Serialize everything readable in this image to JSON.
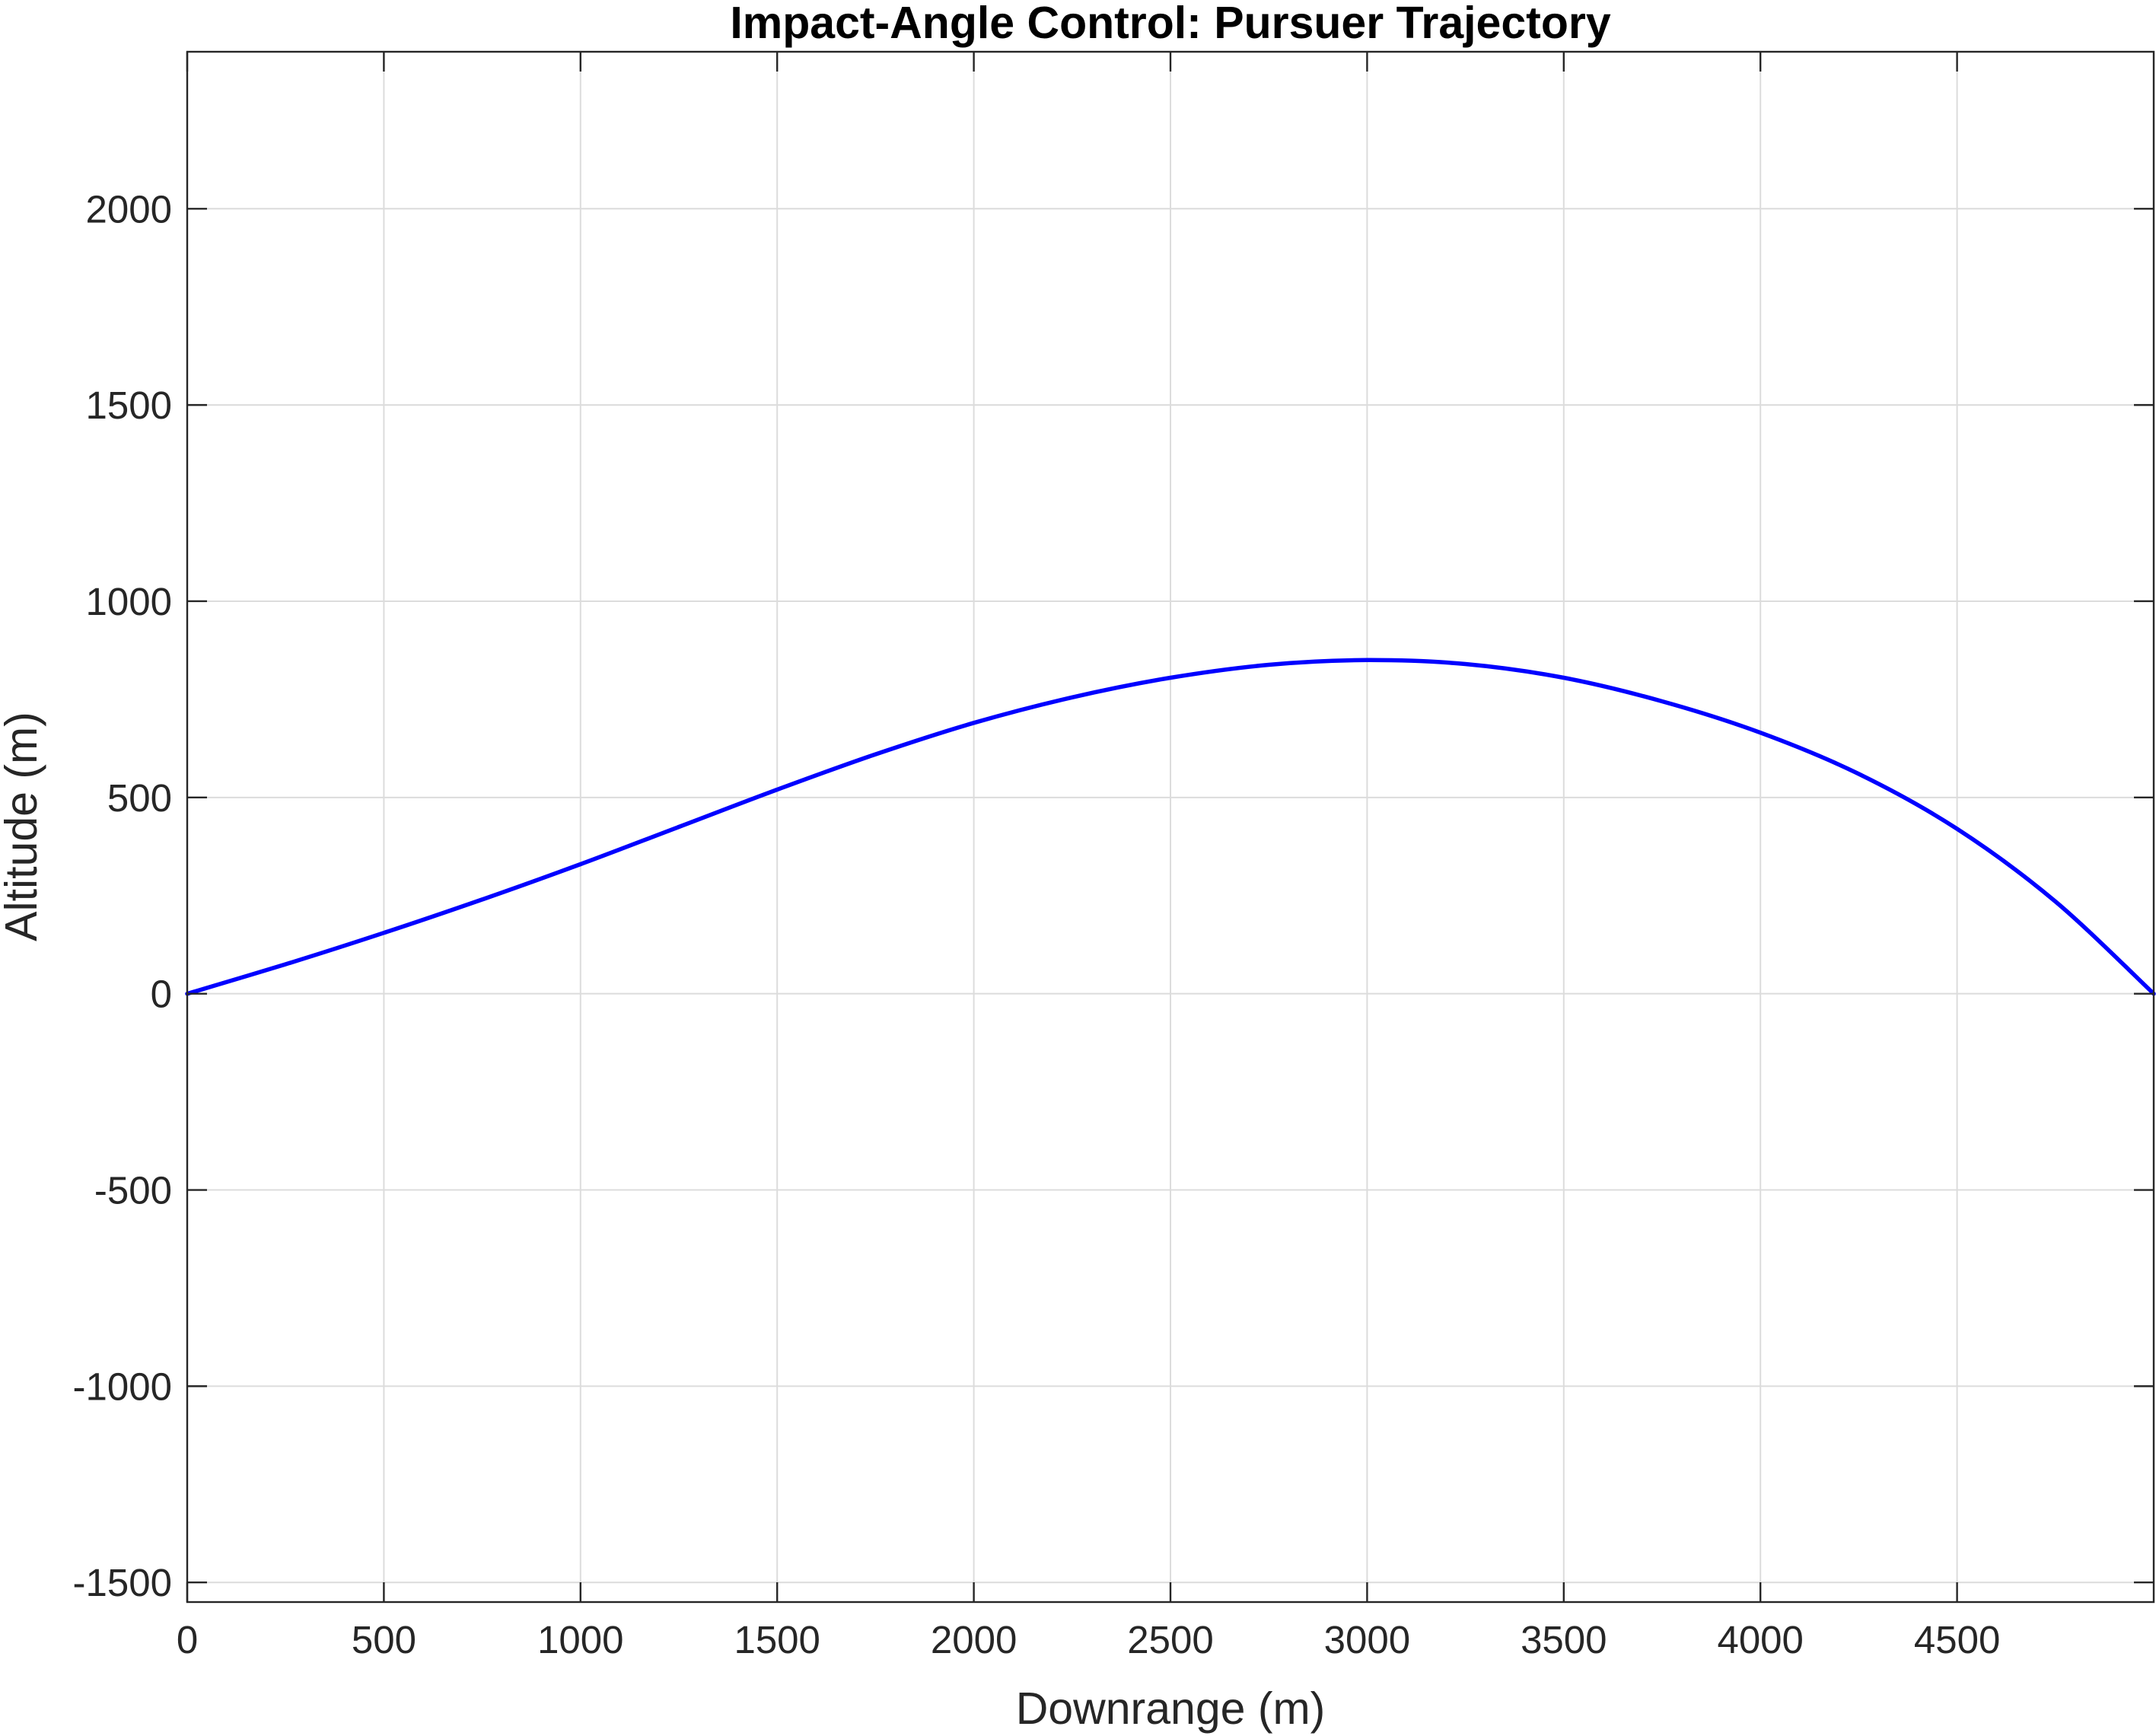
{
  "chart_data": {
    "type": "line",
    "title": "Impact-Angle Control: Pursuer Trajectory",
    "xlabel": "Downrange (m)",
    "ylabel": "Altitude (m)",
    "xlim": [
      0,
      5000
    ],
    "ylim": [
      -1550,
      2400
    ],
    "xticks": [
      0,
      500,
      1000,
      1500,
      2000,
      2500,
      3000,
      3500,
      4000,
      4500
    ],
    "yticks": [
      -1500,
      -1000,
      -500,
      0,
      500,
      1000,
      1500,
      2000
    ],
    "grid": true,
    "series": [
      {
        "color": "#0000ff",
        "x": [
          0,
          250,
          500,
          750,
          1000,
          1250,
          1500,
          1750,
          2000,
          2250,
          2500,
          2750,
          3000,
          3250,
          3500,
          3750,
          4000,
          4250,
          4500,
          4750,
          5000
        ],
        "y": [
          0,
          75,
          155,
          240,
          330,
          425,
          520,
          610,
          690,
          755,
          805,
          838,
          850,
          840,
          805,
          745,
          665,
          560,
          420,
          235,
          0
        ]
      }
    ]
  }
}
